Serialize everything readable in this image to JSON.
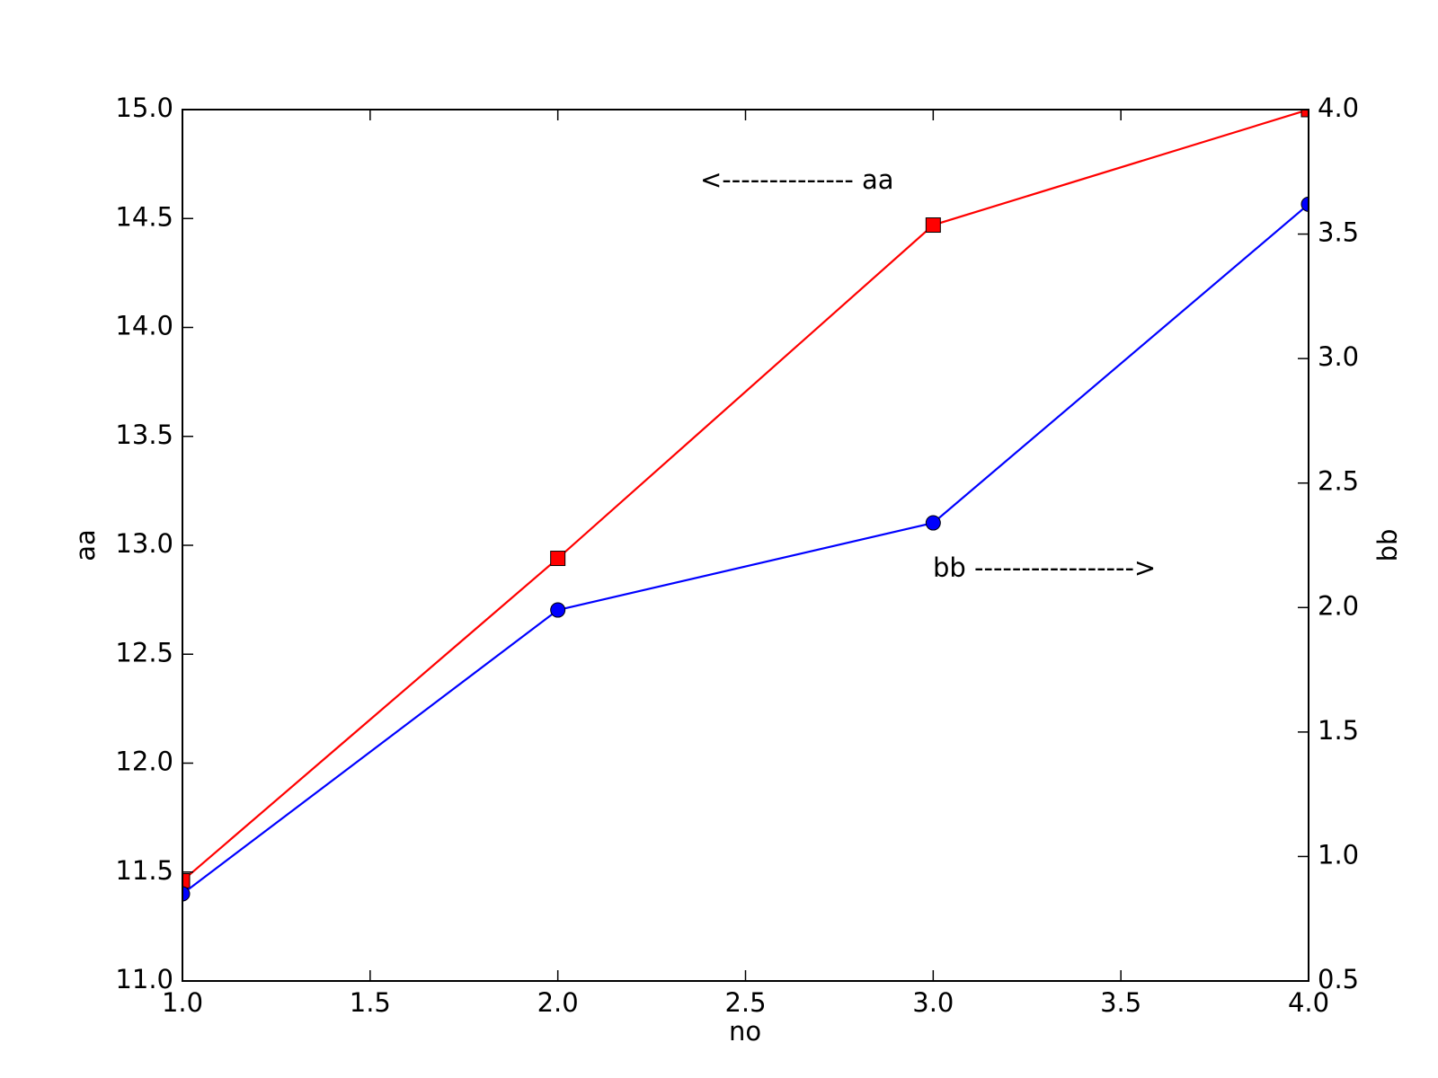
{
  "chart_data": {
    "type": "line",
    "xlabel": "no",
    "ylabel": "aa",
    "y2label": "bb",
    "x": [
      1,
      2,
      3,
      4
    ],
    "series": [
      {
        "color": "#ff0000",
        "marker": "square",
        "values": [
          11.46,
          12.94,
          14.47,
          15.0
        ]
      },
      {
        "color": "#0000ff",
        "marker": "circle",
        "axis": "y2",
        "values": [
          0.85,
          1.99,
          2.34,
          3.62
        ]
      }
    ],
    "xlim": [
      1.0,
      4.0
    ],
    "xticks": [
      {
        "value": 1,
        "label": "1.0"
      },
      1.5,
      {
        "value": 2,
        "label": "2.0"
      },
      2.5,
      {
        "value": 3,
        "label": "3.0"
      },
      3.5,
      {
        "value": 4,
        "label": "4.0"
      }
    ],
    "ylim": [
      11.0,
      15.0
    ],
    "yticks": [
      {
        "value": 11,
        "label": "11.0"
      },
      11.5,
      {
        "value": 12,
        "label": "12.0"
      },
      12.5,
      {
        "value": 13,
        "label": "13.0"
      },
      13.5,
      {
        "value": 14,
        "label": "14.0"
      },
      14.5,
      {
        "value": 15,
        "label": "15.0"
      }
    ],
    "y2lim": [
      0.5,
      4.0
    ],
    "y2ticks": [
      0.5,
      {
        "value": 1,
        "label": "1.0"
      },
      1.5,
      {
        "value": 2,
        "label": "2.0"
      },
      2.5,
      {
        "value": 3,
        "label": "3.0"
      },
      3.5,
      {
        "value": 4,
        "label": "4.0"
      }
    ],
    "annotations": [
      "<-------------- aa",
      "bb ----------------->"
    ],
    "grid": false
  }
}
